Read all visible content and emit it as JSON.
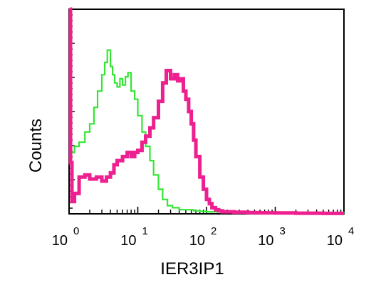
{
  "chart_data": {
    "type": "line",
    "title": "",
    "xlabel": "IER3IP1",
    "ylabel": "Counts",
    "x_scale": "log",
    "xlim": [
      1,
      10000
    ],
    "ylim": [
      0,
      100
    ],
    "x_ticks": [
      {
        "base": "10",
        "exp": "0"
      },
      {
        "base": "10",
        "exp": "1"
      },
      {
        "base": "10",
        "exp": "2"
      },
      {
        "base": "10",
        "exp": "3"
      },
      {
        "base": "10",
        "exp": "4"
      }
    ],
    "grid": false,
    "legend": "none",
    "series": [
      {
        "color": "#33e633",
        "x": [
          1.05,
          1.2,
          1.4,
          1.7,
          2.0,
          2.3,
          2.6,
          3.0,
          3.3,
          3.6,
          4.0,
          4.3,
          4.6,
          5.0,
          5.5,
          6.0,
          6.6,
          7.2,
          8.0,
          9.0,
          10.0,
          11.5,
          13,
          15,
          17,
          20,
          23,
          27,
          32,
          40,
          50,
          65,
          80,
          100,
          150,
          250,
          500,
          1000,
          3000,
          10000
        ],
        "y": [
          30,
          33,
          35,
          40,
          44,
          52,
          60,
          68,
          74,
          80,
          72,
          68,
          64,
          62,
          66,
          63,
          67,
          69,
          60,
          56,
          48,
          40,
          33,
          26,
          19,
          12,
          7,
          4,
          3,
          2,
          2,
          1.5,
          1.2,
          1,
          1,
          1,
          0.6,
          0.4,
          0.3,
          0.2
        ]
      },
      {
        "color": "#ee1f8f",
        "x": [
          1.02,
          1.05,
          1.1,
          1.2,
          1.4,
          1.7,
          2.0,
          2.5,
          3.0,
          3.5,
          4.0,
          4.5,
          5.0,
          6.0,
          7.0,
          8.0,
          9.0,
          10.0,
          11.5,
          13,
          15,
          17,
          20,
          23,
          26,
          30,
          34,
          38,
          42,
          46,
          50,
          55,
          60,
          65,
          70,
          80,
          90,
          100,
          110,
          120,
          135,
          150,
          170,
          200,
          250,
          300,
          400,
          600,
          1000,
          2000,
          5000,
          10000
        ],
        "y": [
          100,
          25,
          6,
          10,
          18,
          19,
          17,
          18,
          16,
          18,
          20,
          24,
          26,
          28,
          30,
          28,
          30,
          31,
          35,
          38,
          42,
          47,
          55,
          64,
          70,
          66,
          68,
          65,
          66,
          60,
          56,
          50,
          44,
          36,
          28,
          18,
          12,
          7,
          5,
          3,
          2,
          1.5,
          1,
          1,
          0.8,
          0.8,
          0.6,
          0.5,
          0.4,
          0.3,
          0.2,
          0.2
        ]
      }
    ]
  }
}
